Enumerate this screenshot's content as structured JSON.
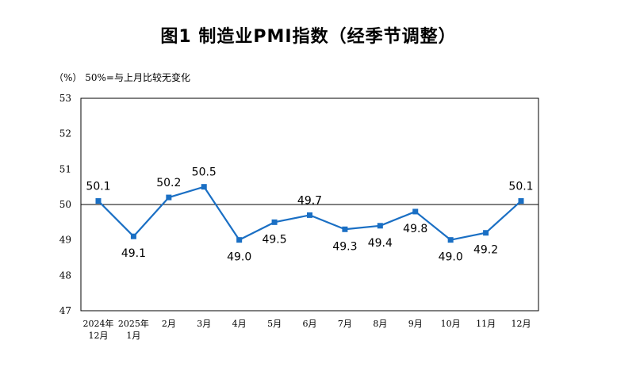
{
  "chart_data": {
    "type": "line",
    "title": "图1  制造业PMI指数（经季节调整）",
    "unit_note": "（%） 50%=与上月比较无变化",
    "categories": [
      [
        "2024年",
        "12月"
      ],
      [
        "2025年",
        "1月"
      ],
      [
        "2月"
      ],
      [
        "3月"
      ],
      [
        "4月"
      ],
      [
        "5月"
      ],
      [
        "6月"
      ],
      [
        "7月"
      ],
      [
        "8月"
      ],
      [
        "9月"
      ],
      [
        "10月"
      ],
      [
        "11月"
      ],
      [
        "12月"
      ]
    ],
    "values": [
      50.1,
      49.1,
      50.2,
      50.5,
      49.0,
      49.5,
      49.7,
      49.3,
      49.4,
      49.8,
      49.0,
      49.2,
      50.1
    ],
    "data_labels": [
      "50.1",
      "49.1",
      "50.2",
      "50.5",
      "49.0",
      "49.5",
      "49.7",
      "49.3",
      "49.4",
      "49.8",
      "49.0",
      "49.2",
      "50.1"
    ],
    "label_positions": [
      "above",
      "below",
      "above",
      "above",
      "below",
      "below",
      "above",
      "below",
      "below",
      "below",
      "below",
      "below",
      "above"
    ],
    "ylim": [
      47,
      53
    ],
    "yticks": [
      "47",
      "48",
      "49",
      "50",
      "51",
      "52",
      "53"
    ],
    "reference_line": 50,
    "line_color": "#1a6fc4"
  }
}
